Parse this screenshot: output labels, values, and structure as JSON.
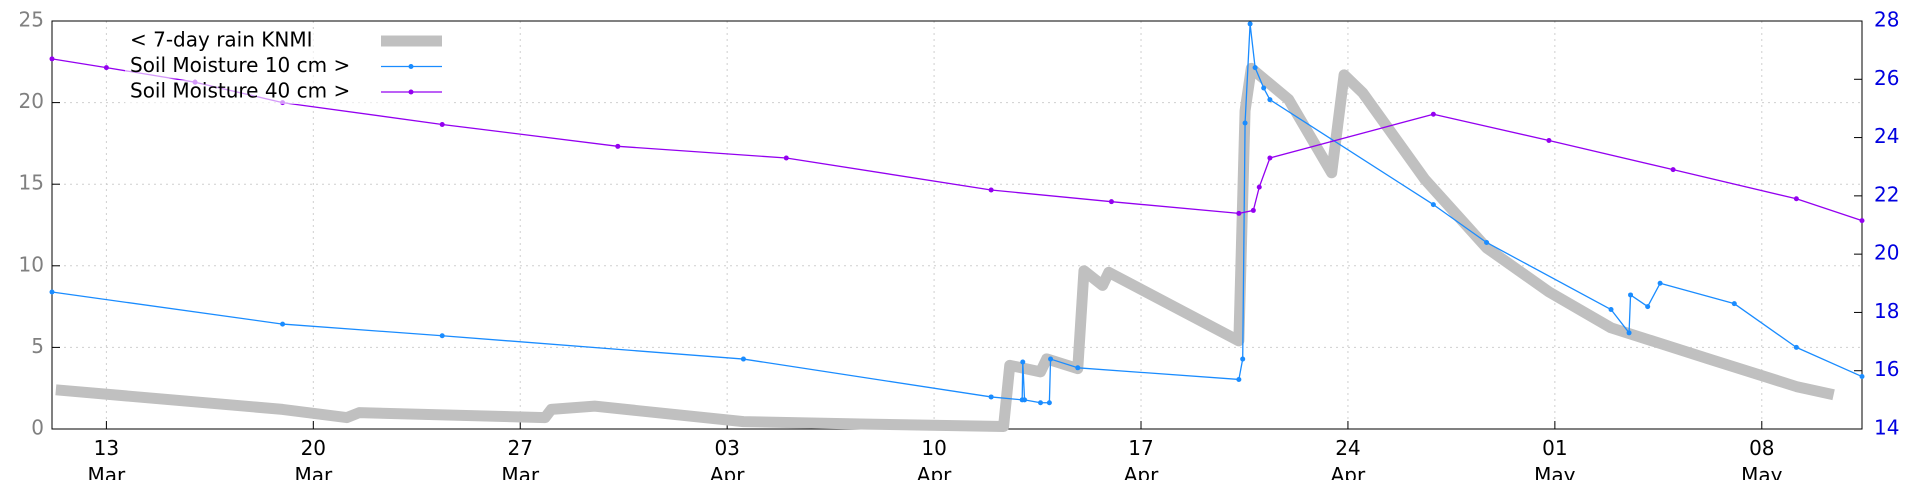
{
  "chart_data": {
    "type": "line",
    "xlim": [
      70.16,
      131.39
    ],
    "xticks": [
      {
        "value": 72,
        "label": "13 Mar"
      },
      {
        "value": 79,
        "label": "20 Mar"
      },
      {
        "value": 86,
        "label": "27 Mar"
      },
      {
        "value": 93,
        "label": "03 Apr"
      },
      {
        "value": 100,
        "label": "10 Apr"
      },
      {
        "value": 107,
        "label": "17 Apr"
      },
      {
        "value": 114,
        "label": "24 Apr"
      },
      {
        "value": 121,
        "label": "01 May"
      },
      {
        "value": 128,
        "label": "08 May"
      }
    ],
    "ylim": [
      0,
      25
    ],
    "yticks": [
      0,
      5,
      10,
      15,
      20,
      25
    ],
    "y2lim": [
      14,
      28
    ],
    "y2ticks": [
      14,
      16,
      18,
      20,
      22,
      24,
      26,
      28
    ],
    "grid": true,
    "legend": "top-left",
    "series": [
      {
        "name": "< 7-day rain KNMI",
        "color": "#c0c0c0",
        "axis": "y",
        "x": [
          70.29,
          77.96,
          80.13,
          80.55,
          86.84,
          87.05,
          88.52,
          93.55,
          97.74,
          102.35,
          102.56,
          103.6,
          103.81,
          104.86,
          105.07,
          105.7,
          105.91,
          110.31,
          110.52,
          110.73,
          111.99,
          113.45,
          113.87,
          114.5,
          116.6,
          118.69,
          120.8,
          122.9,
          126.2,
          129.17,
          130.43
        ],
        "values": [
          2.4,
          1.2,
          0.7,
          1.0,
          0.7,
          1.2,
          1.4,
          0.45,
          0.3,
          0.15,
          3.9,
          3.5,
          4.3,
          3.7,
          9.7,
          8.8,
          9.6,
          5.4,
          19.5,
          22.1,
          20.2,
          15.7,
          21.7,
          20.6,
          15.3,
          11.1,
          8.4,
          6.2,
          4.3,
          2.6,
          2.1
        ]
      },
      {
        "name": "Soil Moisture 10 cm >",
        "color": "#1a8cff",
        "axis": "y2",
        "x": [
          70.16,
          77.96,
          83.36,
          93.55,
          101.93,
          102.98,
          103.0,
          103.06,
          103.6,
          103.9,
          103.94,
          104.86,
          110.31,
          110.44,
          110.52,
          110.69,
          110.86,
          111.15,
          111.36,
          116.89,
          118.69,
          122.9,
          123.51,
          123.56,
          124.14,
          124.56,
          127.07,
          129.17,
          131.39
        ],
        "values": [
          18.7,
          17.6,
          17.2,
          16.4,
          15.1,
          15.0,
          16.3,
          15.0,
          14.9,
          14.9,
          16.4,
          16.1,
          15.7,
          16.4,
          24.5,
          27.9,
          26.4,
          25.7,
          25.3,
          21.7,
          20.4,
          18.1,
          17.3,
          18.6,
          18.2,
          19.0,
          18.3,
          16.8,
          15.8
        ]
      },
      {
        "name": "Soil Moisture 40 cm >",
        "color": "#9400f0",
        "axis": "y2",
        "x": [
          70.16,
          72,
          75,
          77.96,
          83.36,
          89.3,
          95,
          101.93,
          106,
          110.31,
          110.8,
          111.0,
          111.36,
          116.89,
          120.8,
          125,
          129.17,
          131.39
        ],
        "values": [
          26.7,
          26.4,
          25.9,
          25.2,
          24.45,
          23.7,
          23.3,
          22.2,
          21.8,
          21.4,
          21.5,
          22.3,
          23.3,
          24.8,
          23.9,
          22.9,
          21.9,
          21.15
        ]
      }
    ]
  }
}
